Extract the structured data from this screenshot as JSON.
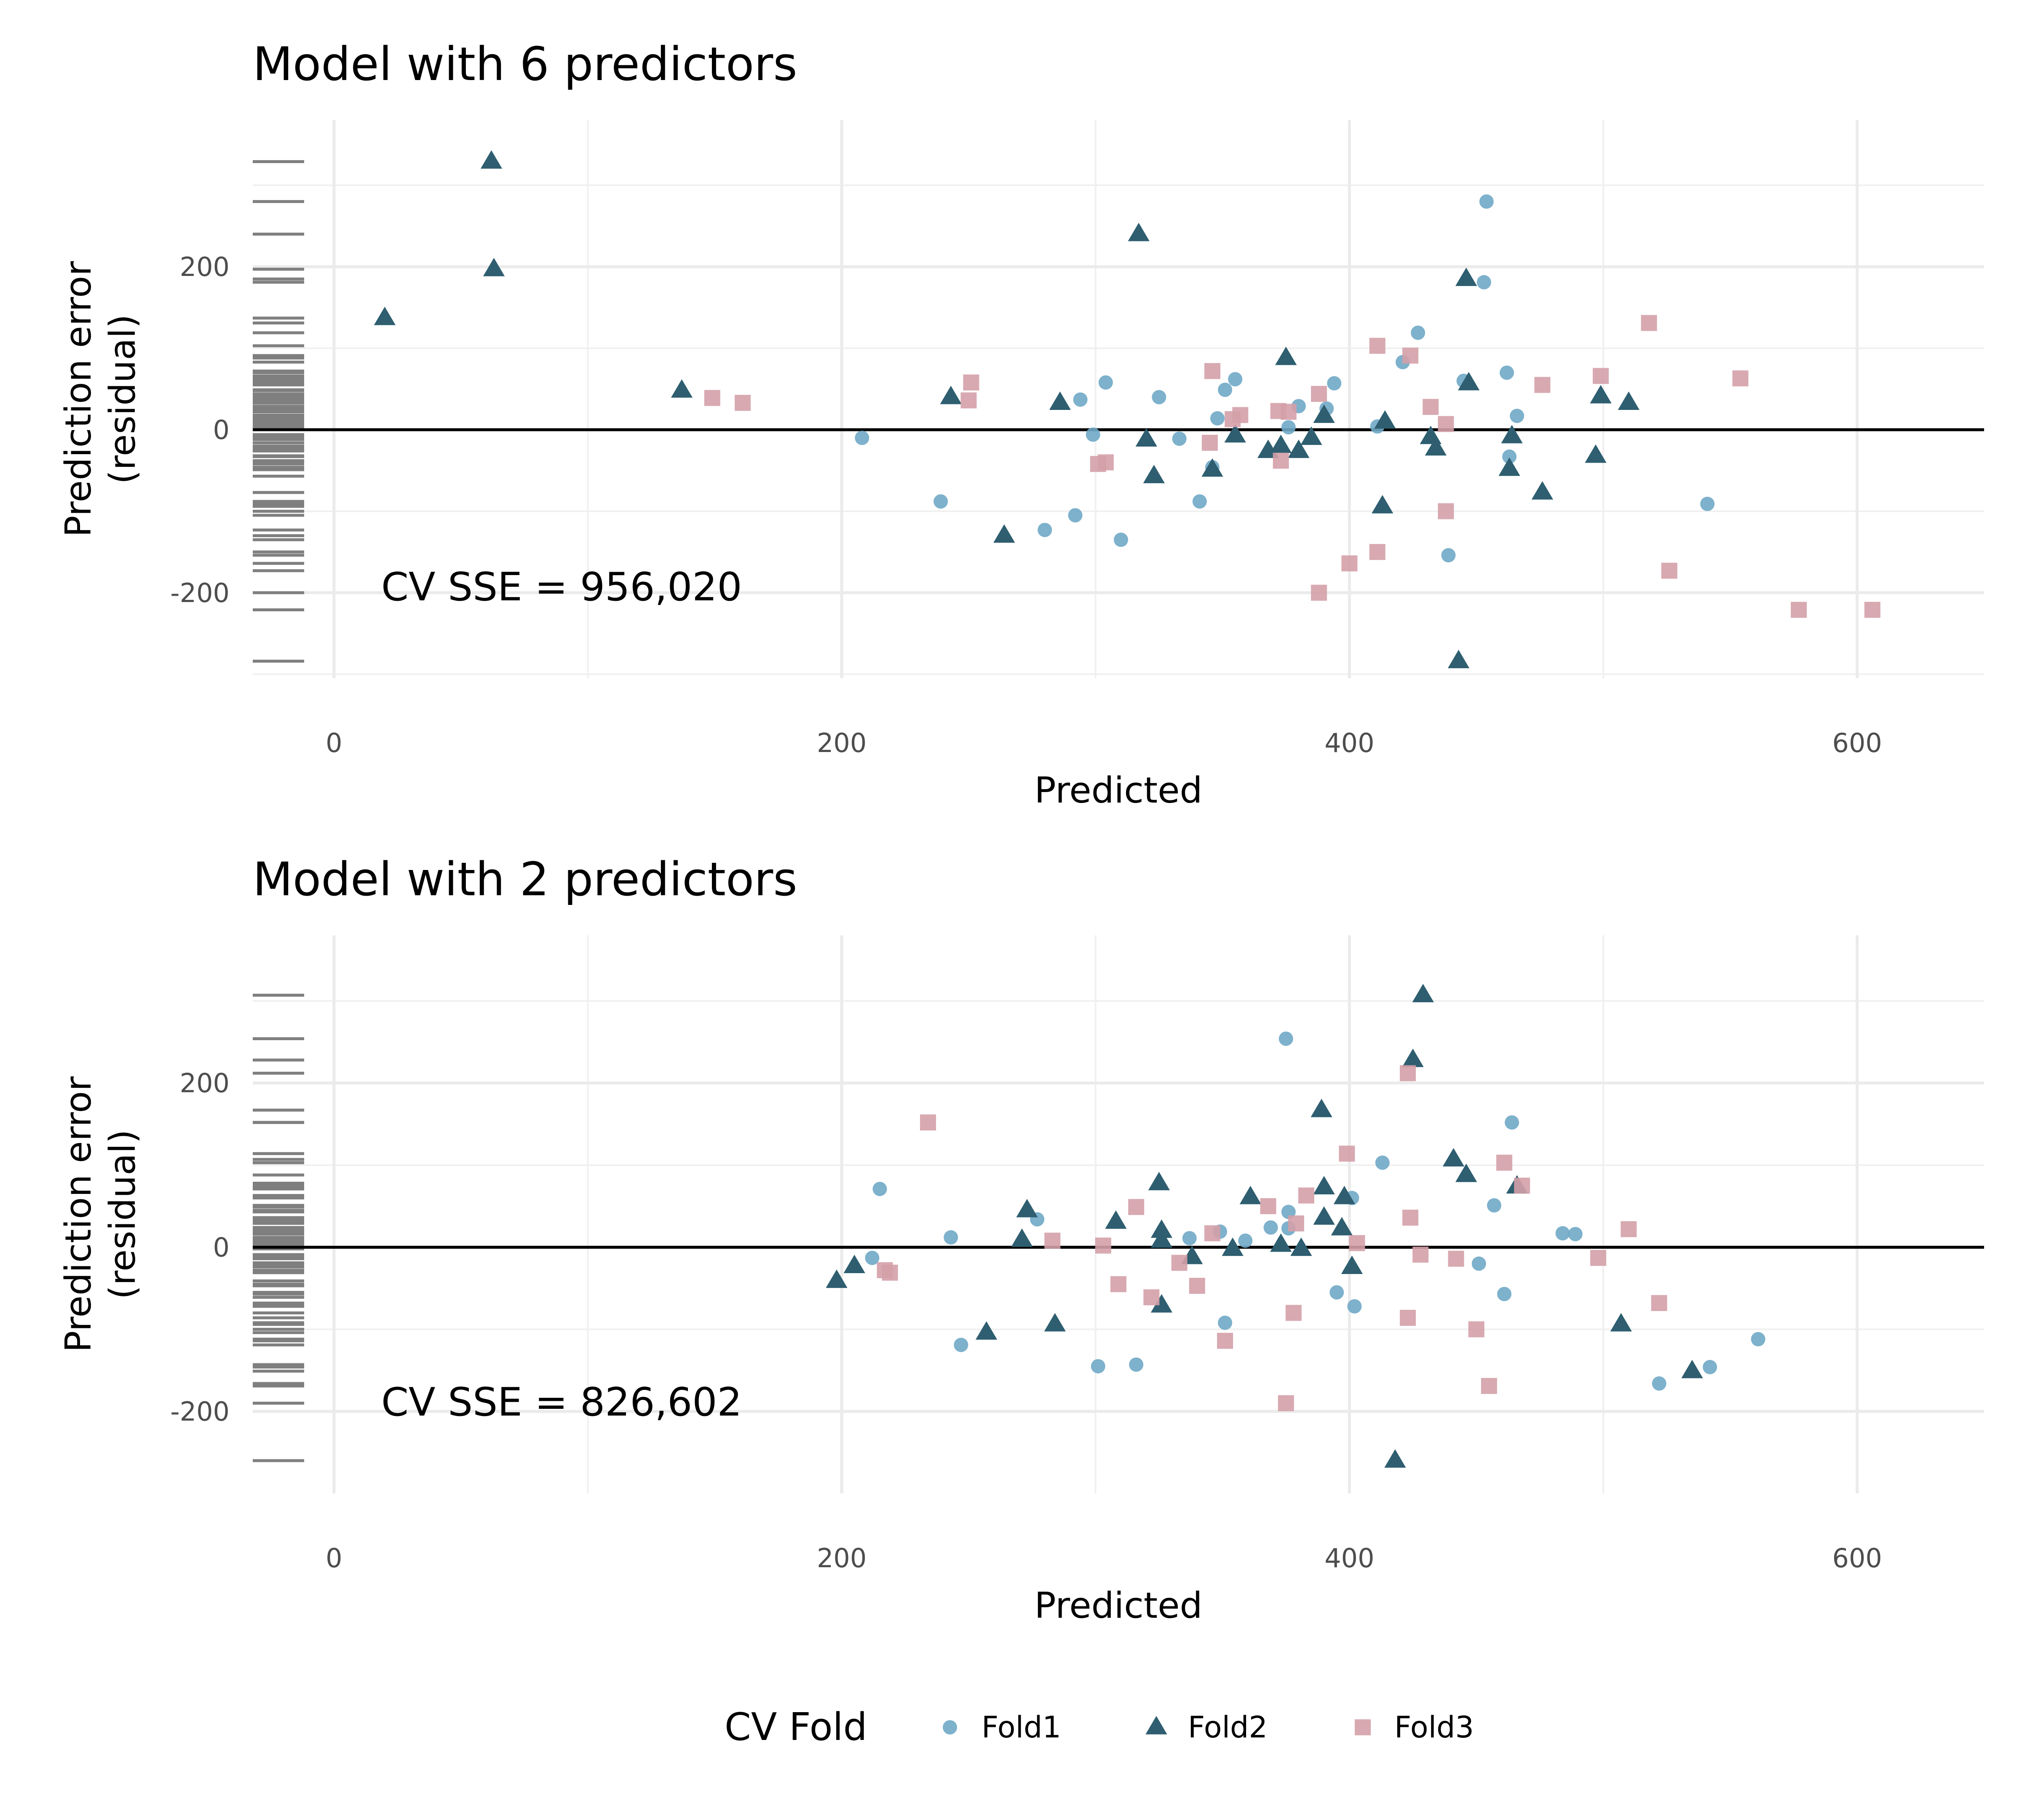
{
  "chart_data": [
    {
      "type": "scatter",
      "title": "Model with 6 predictors",
      "xlabel": "Predicted",
      "ylabel": [
        "Prediction error",
        "(residual)"
      ],
      "xlim": [
        -32,
        650
      ],
      "ylim": [
        -305,
        380
      ],
      "xticks": [
        0,
        200,
        400,
        600
      ],
      "yticks": [
        -200,
        0,
        200
      ],
      "grid": true,
      "reference_line_y": 0,
      "annotation": "CV SSE = 956,020",
      "series": [
        {
          "name": "Fold1",
          "color": "#6FA8C6",
          "shape": "circle",
          "points": [
            [
              208,
              -10
            ],
            [
              239,
              -88
            ],
            [
              280,
              -123
            ],
            [
              292,
              -105
            ],
            [
              294,
              37
            ],
            [
              299,
              -6
            ],
            [
              304,
              58
            ],
            [
              310,
              -135
            ],
            [
              325,
              40
            ],
            [
              333,
              -11
            ],
            [
              341,
              -88
            ],
            [
              346,
              -46
            ],
            [
              348,
              14
            ],
            [
              351,
              49
            ],
            [
              355,
              62
            ],
            [
              376,
              3
            ],
            [
              380,
              29
            ],
            [
              391,
              26
            ],
            [
              394,
              57
            ],
            [
              411,
              4
            ],
            [
              421,
              83
            ],
            [
              427,
              119
            ],
            [
              439,
              -154
            ],
            [
              445,
              60
            ],
            [
              453,
              181
            ],
            [
              454,
              280
            ],
            [
              462,
              70
            ],
            [
              463,
              -33
            ],
            [
              466,
              17
            ],
            [
              541,
              -91
            ]
          ]
        },
        {
          "name": "Fold2",
          "color": "#2E5E70",
          "shape": "triangle",
          "points": [
            [
              20,
              137
            ],
            [
              62,
              329
            ],
            [
              63,
              197
            ],
            [
              137,
              48
            ],
            [
              243,
              40
            ],
            [
              264,
              -130
            ],
            [
              286,
              33
            ],
            [
              317,
              240
            ],
            [
              320,
              -12
            ],
            [
              323,
              -57
            ],
            [
              346,
              -49
            ],
            [
              355,
              -7
            ],
            [
              368,
              -26
            ],
            [
              373,
              -20
            ],
            [
              375,
              88
            ],
            [
              380,
              -26
            ],
            [
              385,
              -10
            ],
            [
              390,
              17
            ],
            [
              413,
              -94
            ],
            [
              414,
              10
            ],
            [
              432,
              -9
            ],
            [
              434,
              -23
            ],
            [
              443,
              -284
            ],
            [
              446,
              185
            ],
            [
              447,
              57
            ],
            [
              463,
              -48
            ],
            [
              464,
              -8
            ],
            [
              476,
              -77
            ],
            [
              497,
              -32
            ],
            [
              499,
              41
            ],
            [
              510,
              33
            ]
          ]
        },
        {
          "name": "Fold3",
          "color": "#D4A0A8",
          "shape": "square",
          "points": [
            [
              149,
              39
            ],
            [
              161,
              33
            ],
            [
              250,
              36
            ],
            [
              251,
              58
            ],
            [
              301,
              -42
            ],
            [
              304,
              -40
            ],
            [
              345,
              -16
            ],
            [
              346,
              72
            ],
            [
              354,
              13
            ],
            [
              357,
              18
            ],
            [
              372,
              23
            ],
            [
              373,
              -38
            ],
            [
              376,
              22
            ],
            [
              388,
              44
            ],
            [
              388,
              -200
            ],
            [
              400,
              -164
            ],
            [
              411,
              -150
            ],
            [
              411,
              103
            ],
            [
              424,
              91
            ],
            [
              432,
              28
            ],
            [
              438,
              7
            ],
            [
              438,
              -100
            ],
            [
              476,
              55
            ],
            [
              499,
              66
            ],
            [
              518,
              131
            ],
            [
              526,
              -173
            ],
            [
              554,
              63
            ],
            [
              577,
              -221
            ],
            [
              606,
              -221
            ]
          ]
        }
      ]
    },
    {
      "type": "scatter",
      "title": "Model with 2 predictors",
      "xlabel": "Predicted",
      "ylabel": [
        "Prediction error",
        "(residual)"
      ],
      "xlim": [
        -32,
        650
      ],
      "ylim": [
        -300,
        380
      ],
      "xticks": [
        0,
        200,
        400,
        600
      ],
      "yticks": [
        -200,
        0,
        200
      ],
      "grid": true,
      "reference_line_y": 0,
      "annotation": "CV SSE = 826,602",
      "series": [
        {
          "name": "Fold1",
          "color": "#6FA8C6",
          "shape": "circle",
          "points": [
            [
              212,
              -13
            ],
            [
              215,
              71
            ],
            [
              243,
              12
            ],
            [
              247,
              -119
            ],
            [
              277,
              34
            ],
            [
              301,
              -145
            ],
            [
              316,
              -143
            ],
            [
              337,
              11
            ],
            [
              349,
              19
            ],
            [
              351,
              -92
            ],
            [
              359,
              8
            ],
            [
              369,
              24
            ],
            [
              375,
              254
            ],
            [
              376,
              43
            ],
            [
              376,
              23
            ],
            [
              395,
              -55
            ],
            [
              401,
              60
            ],
            [
              402,
              -72
            ],
            [
              413,
              103
            ],
            [
              451,
              -20
            ],
            [
              457,
              51
            ],
            [
              461,
              -57
            ],
            [
              464,
              152
            ],
            [
              484,
              17
            ],
            [
              489,
              16
            ],
            [
              522,
              -166
            ],
            [
              542,
              -146
            ],
            [
              561,
              -112
            ]
          ]
        },
        {
          "name": "Fold2",
          "color": "#2E5E70",
          "shape": "triangle",
          "points": [
            [
              198,
              -41
            ],
            [
              205,
              -23
            ],
            [
              257,
              -104
            ],
            [
              271,
              9
            ],
            [
              273,
              45
            ],
            [
              284,
              -94
            ],
            [
              308,
              31
            ],
            [
              325,
              78
            ],
            [
              326,
              20
            ],
            [
              326,
              8
            ],
            [
              326,
              -71
            ],
            [
              338,
              -12
            ],
            [
              354,
              -2
            ],
            [
              361,
              61
            ],
            [
              373,
              3
            ],
            [
              381,
              -2
            ],
            [
              389,
              167
            ],
            [
              390,
              36
            ],
            [
              390,
              73
            ],
            [
              397,
              23
            ],
            [
              398,
              61
            ],
            [
              401,
              -24
            ],
            [
              418,
              -260
            ],
            [
              425,
              228
            ],
            [
              429,
              307
            ],
            [
              441,
              107
            ],
            [
              446,
              88
            ],
            [
              466,
              74
            ],
            [
              507,
              -94
            ],
            [
              535,
              -151
            ]
          ]
        },
        {
          "name": "Fold3",
          "color": "#D4A0A8",
          "shape": "square",
          "points": [
            [
              217,
              -28
            ],
            [
              219,
              -31
            ],
            [
              234,
              152
            ],
            [
              283,
              8
            ],
            [
              303,
              2
            ],
            [
              309,
              -45
            ],
            [
              316,
              49
            ],
            [
              322,
              -61
            ],
            [
              333,
              -19
            ],
            [
              340,
              -47
            ],
            [
              346,
              17
            ],
            [
              351,
              -114
            ],
            [
              368,
              50
            ],
            [
              375,
              -190
            ],
            [
              378,
              -80
            ],
            [
              379,
              29
            ],
            [
              383,
              63
            ],
            [
              399,
              114
            ],
            [
              403,
              5
            ],
            [
              423,
              212
            ],
            [
              424,
              36
            ],
            [
              423,
              -86
            ],
            [
              428,
              -9
            ],
            [
              442,
              -14
            ],
            [
              450,
              -100
            ],
            [
              455,
              -169
            ],
            [
              461,
              103
            ],
            [
              468,
              75
            ],
            [
              498,
              -13
            ],
            [
              510,
              22
            ],
            [
              522,
              -68
            ]
          ]
        }
      ]
    }
  ],
  "legend": {
    "title": "CV Fold",
    "position": "bottom",
    "items": [
      {
        "label": "Fold1",
        "color": "#6FA8C6",
        "shape": "circle"
      },
      {
        "label": "Fold2",
        "color": "#2E5E70",
        "shape": "triangle"
      },
      {
        "label": "Fold3",
        "color": "#D4A0A8",
        "shape": "square"
      }
    ]
  }
}
